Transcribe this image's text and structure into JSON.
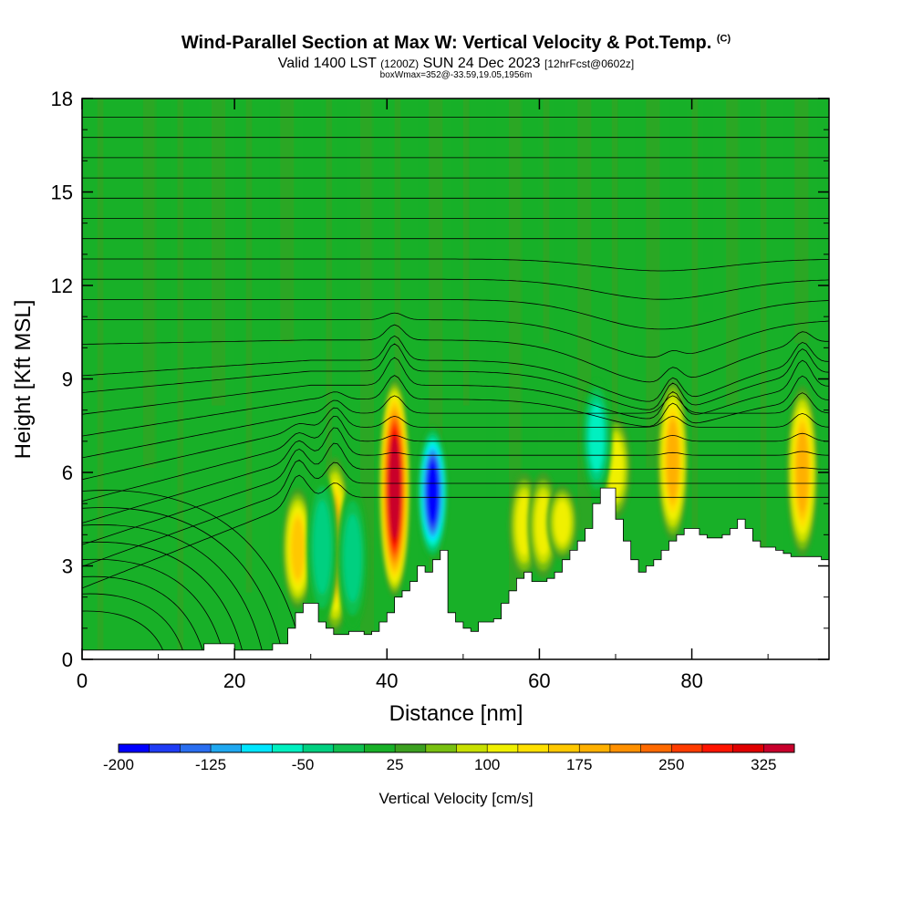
{
  "header": {
    "title": "Wind-Parallel Section at Max W: Vertical Velocity & Pot.Temp.",
    "copyright": "(C)",
    "valid_prefix": "Valid 1400 LST",
    "valid_utc": "(1200Z)",
    "valid_date": "SUN 24 Dec 2023",
    "forecast": "[12hrFcst@0602z]",
    "box_info": "boxWmax=352@-33.59,19.05,1956m"
  },
  "chart_data": {
    "type": "heatmap",
    "xlabel": "Distance [nm]",
    "ylabel": "Height [Kft MSL]",
    "xlim": [
      0,
      98
    ],
    "ylim": [
      0,
      18
    ],
    "x_ticks": [
      0,
      20,
      40,
      60,
      80
    ],
    "y_ticks": [
      0,
      3,
      6,
      9,
      12,
      15,
      18
    ],
    "background_value": 20,
    "colorbar": {
      "title": "Vertical Velocity [cm/s]",
      "min": -200,
      "max": 350,
      "step": 25,
      "labels": [
        -200,
        -125,
        -50,
        25,
        100,
        175,
        250,
        325
      ],
      "colors": [
        "#0000ff",
        "#1f3cf5",
        "#2a6ef0",
        "#1fa8f0",
        "#00e6ff",
        "#00f0c0",
        "#00d080",
        "#10c050",
        "#18b028",
        "#3ca020",
        "#78c010",
        "#c8e000",
        "#f0f000",
        "#ffe000",
        "#ffc800",
        "#ffb000",
        "#ff9000",
        "#ff6a00",
        "#ff3c00",
        "#ff1400",
        "#e00000",
        "#c8002c"
      ]
    },
    "terrain_kft": [
      [
        0,
        0.3
      ],
      [
        5,
        0.3
      ],
      [
        9,
        0.3
      ],
      [
        10,
        0.3
      ],
      [
        14,
        0.3
      ],
      [
        16,
        0.5
      ],
      [
        17,
        0.5
      ],
      [
        20,
        0.3
      ],
      [
        24,
        0.3
      ],
      [
        25,
        0.5
      ],
      [
        27,
        1.0
      ],
      [
        28,
        1.5
      ],
      [
        29,
        1.8
      ],
      [
        30,
        1.8
      ],
      [
        31,
        1.2
      ],
      [
        32,
        1.0
      ],
      [
        33,
        0.8
      ],
      [
        34,
        0.8
      ],
      [
        35,
        0.9
      ],
      [
        36,
        0.9
      ],
      [
        37,
        0.8
      ],
      [
        38,
        0.9
      ],
      [
        39,
        1.2
      ],
      [
        40,
        1.5
      ],
      [
        41,
        2.0
      ],
      [
        42,
        2.2
      ],
      [
        43,
        2.5
      ],
      [
        44,
        3.0
      ],
      [
        45,
        2.8
      ],
      [
        46,
        3.2
      ],
      [
        47,
        3.5
      ],
      [
        48,
        1.5
      ],
      [
        49,
        1.2
      ],
      [
        50,
        1.0
      ],
      [
        51,
        0.9
      ],
      [
        52,
        1.2
      ],
      [
        53,
        1.2
      ],
      [
        54,
        1.3
      ],
      [
        55,
        1.8
      ],
      [
        56,
        2.2
      ],
      [
        57,
        2.6
      ],
      [
        58,
        2.8
      ],
      [
        59,
        2.5
      ],
      [
        60,
        2.5
      ],
      [
        61,
        2.6
      ],
      [
        62,
        2.8
      ],
      [
        63,
        3.2
      ],
      [
        64,
        3.5
      ],
      [
        65,
        3.8
      ],
      [
        66,
        4.2
      ],
      [
        67,
        5.0
      ],
      [
        68,
        5.5
      ],
      [
        69,
        5.5
      ],
      [
        70,
        4.5
      ],
      [
        71,
        3.8
      ],
      [
        72,
        3.2
      ],
      [
        73,
        2.8
      ],
      [
        74,
        3.0
      ],
      [
        75,
        3.2
      ],
      [
        76,
        3.5
      ],
      [
        77,
        3.8
      ],
      [
        78,
        4.0
      ],
      [
        79,
        4.2
      ],
      [
        80,
        4.2
      ],
      [
        81,
        4.0
      ],
      [
        82,
        3.9
      ],
      [
        83,
        3.9
      ],
      [
        84,
        4.0
      ],
      [
        85,
        4.2
      ],
      [
        86,
        4.5
      ],
      [
        87,
        4.2
      ],
      [
        88,
        3.8
      ],
      [
        89,
        3.6
      ],
      [
        90,
        3.6
      ],
      [
        91,
        3.5
      ],
      [
        92,
        3.4
      ],
      [
        93,
        3.3
      ],
      [
        94,
        3.3
      ],
      [
        95,
        3.3
      ],
      [
        96,
        3.3
      ],
      [
        97,
        3.2
      ],
      [
        98,
        3.2
      ]
    ],
    "updrafts": [
      {
        "x": 41,
        "y_low": 2.0,
        "y_high": 9.0,
        "peak": 352
      },
      {
        "x": 33.2,
        "y_low": 0.8,
        "y_high": 6.5,
        "peak": 180
      },
      {
        "x": 28.3,
        "y_low": 1.6,
        "y_high": 5.5,
        "peak": 160
      },
      {
        "x": 77.5,
        "y_low": 3.8,
        "y_high": 9.0,
        "peak": 190
      },
      {
        "x": 94.5,
        "y_low": 3.3,
        "y_high": 8.8,
        "peak": 180
      },
      {
        "x": 70,
        "y_low": 4.5,
        "y_high": 7.8,
        "peak": 110
      },
      {
        "x": 58,
        "y_low": 2.6,
        "y_high": 6.0,
        "peak": 120
      },
      {
        "x": 60.5,
        "y_low": 2.6,
        "y_high": 6.0,
        "peak": 110
      },
      {
        "x": 63,
        "y_low": 3.2,
        "y_high": 5.6,
        "peak": 110
      }
    ],
    "downdrafts": [
      {
        "x": 46,
        "y_low": 3.2,
        "y_high": 7.5,
        "peak": -200
      },
      {
        "x": 67.5,
        "y_low": 5.2,
        "y_high": 9.0,
        "peak": -80
      },
      {
        "x": 31.5,
        "y_low": 1.2,
        "y_high": 6.0,
        "peak": -50
      },
      {
        "x": 35.5,
        "y_low": 1.0,
        "y_high": 5.5,
        "peak": -50
      }
    ]
  }
}
